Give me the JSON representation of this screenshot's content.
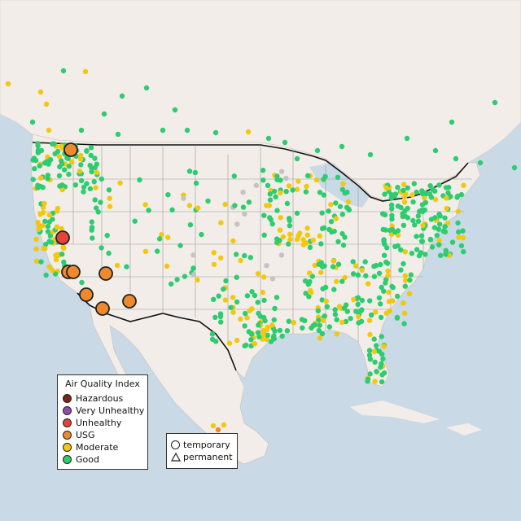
{
  "legend": {
    "title": "Air Quality Index",
    "items": [
      {
        "label": "Hazardous",
        "color": "#7e2418"
      },
      {
        "label": "Very Unhealthy",
        "color": "#8e4fa6"
      },
      {
        "label": "Unhealthy",
        "color": "#e5423b"
      },
      {
        "label": "USG",
        "color": "#ee8a2e"
      },
      {
        "label": "Moderate",
        "color": "#f2c80f"
      },
      {
        "label": "Good",
        "color": "#2ecc71"
      }
    ]
  },
  "type_legend": {
    "temporary": "temporary",
    "permanent": "permanent"
  },
  "colors": {
    "water": "#c9d9e6",
    "land": "#f2ede8",
    "inactive": "#c3c3c3"
  }
}
